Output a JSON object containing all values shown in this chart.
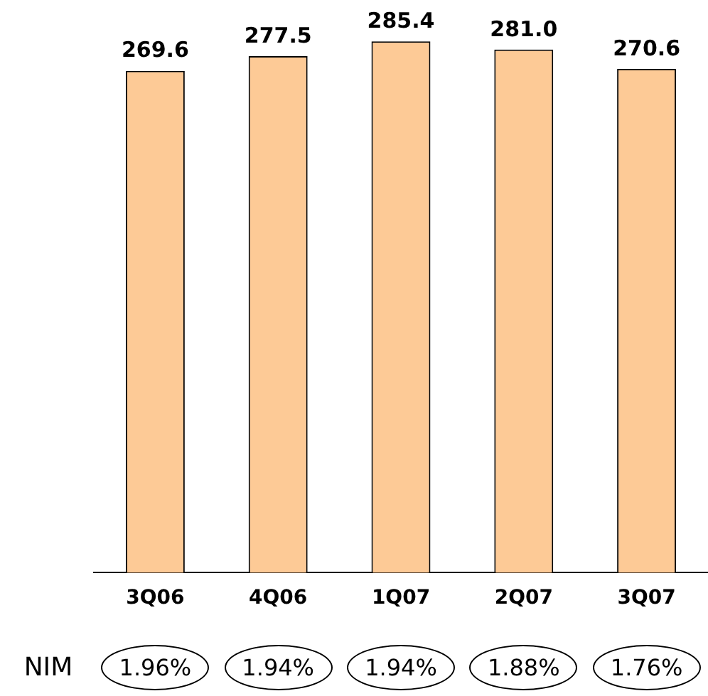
{
  "chart_data": {
    "type": "bar",
    "categories": [
      "3Q06",
      "4Q06",
      "1Q07",
      "2Q07",
      "3Q07"
    ],
    "values": [
      269.6,
      277.5,
      285.4,
      281.0,
      270.6
    ],
    "value_labels": [
      "269.6",
      "277.5",
      "285.4",
      "281.0",
      "270.6"
    ],
    "color": "#fdca96",
    "tick_labels": "x",
    "grid": false,
    "annotations": [
      "NIM",
      "1.96%",
      "1.94%",
      "1.94%",
      "1.88%",
      "1.76%"
    ]
  }
}
